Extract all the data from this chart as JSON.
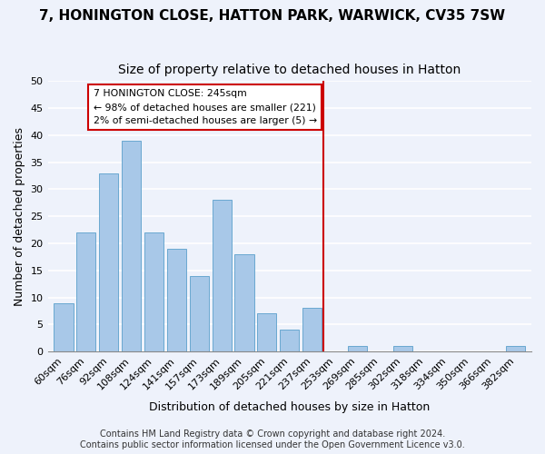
{
  "title": "7, HONINGTON CLOSE, HATTON PARK, WARWICK, CV35 7SW",
  "subtitle": "Size of property relative to detached houses in Hatton",
  "xlabel": "Distribution of detached houses by size in Hatton",
  "ylabel": "Number of detached properties",
  "bar_labels": [
    "60sqm",
    "76sqm",
    "92sqm",
    "108sqm",
    "124sqm",
    "141sqm",
    "157sqm",
    "173sqm",
    "189sqm",
    "205sqm",
    "221sqm",
    "237sqm",
    "253sqm",
    "269sqm",
    "285sqm",
    "302sqm",
    "318sqm",
    "334sqm",
    "350sqm",
    "366sqm",
    "382sqm"
  ],
  "bar_values": [
    9,
    22,
    33,
    39,
    22,
    19,
    14,
    28,
    18,
    7,
    4,
    8,
    0,
    1,
    0,
    1,
    0,
    0,
    0,
    0,
    1
  ],
  "bar_color": "#a8c8e8",
  "bar_edge_color": "#6aa8d0",
  "ylim": [
    0,
    50
  ],
  "yticks": [
    0,
    5,
    10,
    15,
    20,
    25,
    30,
    35,
    40,
    45,
    50
  ],
  "vline_color": "#cc0000",
  "annotation_title": "7 HONINGTON CLOSE: 245sqm",
  "annotation_line1": "← 98% of detached houses are smaller (221)",
  "annotation_line2": "2% of semi-detached houses are larger (5) →",
  "annotation_box_color": "#ffffff",
  "annotation_box_edge": "#cc0000",
  "footer1": "Contains HM Land Registry data © Crown copyright and database right 2024.",
  "footer2": "Contains public sector information licensed under the Open Government Licence v3.0.",
  "background_color": "#eef2fb",
  "grid_color": "#ffffff",
  "title_fontsize": 11,
  "subtitle_fontsize": 10,
  "axis_label_fontsize": 9,
  "tick_fontsize": 8,
  "footer_fontsize": 7
}
